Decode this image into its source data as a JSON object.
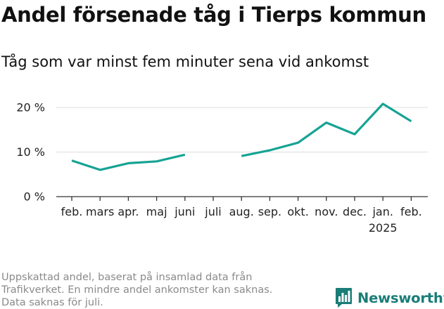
{
  "title": "Andel försenade tåg i Tierps kommun",
  "subtitle": "Tåg som var minst fem minuter sena vid ankomst",
  "footnote": [
    "Uppskattad andel, baserat på insamlad data från",
    "Trafikverket. En mindre andel ankomster kan saknas.",
    "Data saknas för juli."
  ],
  "logo": {
    "text": "Newsworthy",
    "icon": "newsworthy-logo-icon",
    "color": "#1a7d78"
  },
  "chart_data": {
    "type": "line",
    "categories": [
      "feb.",
      "mars",
      "apr.",
      "maj",
      "juni",
      "juli",
      "aug.",
      "sep.",
      "okt.",
      "nov.",
      "dec.",
      "jan.",
      "feb."
    ],
    "year_labels": [
      "",
      "",
      "",
      "",
      "",
      "",
      "",
      "",
      "",
      "",
      "",
      "2025",
      ""
    ],
    "series": [
      {
        "values": [
          8.1,
          6.0,
          7.5,
          7.9,
          9.4,
          null,
          9.1,
          10.4,
          12.1,
          16.6,
          14.0,
          20.8,
          16.9
        ],
        "color": "#16a394"
      }
    ],
    "yticks": [
      0,
      10,
      20
    ],
    "ytick_labels": [
      "0 %",
      "10 %",
      "20 %"
    ],
    "ylim": [
      0,
      22
    ],
    "grid": true
  }
}
